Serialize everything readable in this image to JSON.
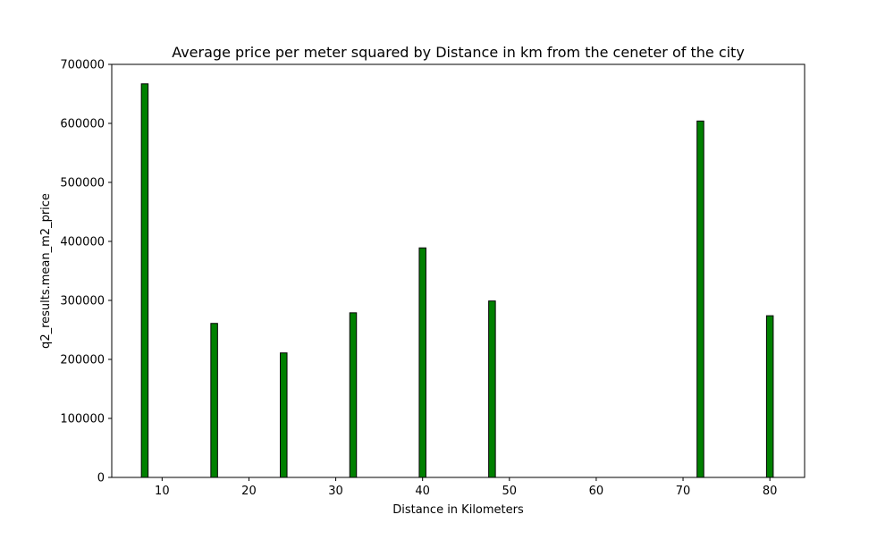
{
  "chart_data": {
    "type": "bar",
    "title": "Average price per meter squared by Distance in km from the ceneter of the city",
    "xlabel": "Distance in Kilometers",
    "ylabel": "q2_results.mean_m2_price",
    "x": [
      8,
      16,
      24,
      32,
      40,
      48,
      72,
      80
    ],
    "values": [
      667000,
      261000,
      211000,
      279000,
      389000,
      299000,
      604000,
      274000
    ],
    "xlim": [
      4.2,
      84
    ],
    "ylim": [
      0,
      700000
    ],
    "xticks": [
      10,
      20,
      30,
      40,
      50,
      60,
      70,
      80
    ],
    "yticks": [
      0,
      100000,
      200000,
      300000,
      400000,
      500000,
      600000,
      700000
    ],
    "bar_color": "#008000",
    "edge_color": "#000000",
    "grid": false,
    "legend": "none"
  }
}
